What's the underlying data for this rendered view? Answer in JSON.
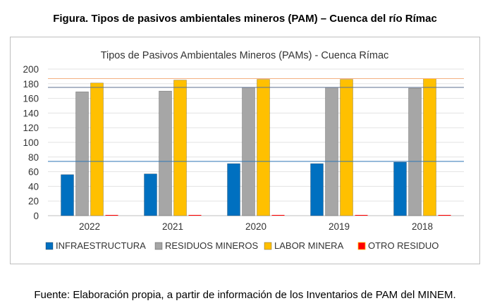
{
  "figure_caption": "Figura. Tipos de pasivos ambientales mineros (PAM) – Cuenca del río Rímac",
  "source_note": "Fuente: Elaboración propia, a partir de información de los Inventarios de PAM del MINEM.",
  "chart_data": {
    "type": "bar",
    "title": "Tipos de Pasivos Ambientales Mineros (PAMs) - Cuenca Rímac",
    "xlabel": "",
    "ylabel": "",
    "categories": [
      "2022",
      "2021",
      "2020",
      "2019",
      "2018"
    ],
    "ylim": [
      0,
      200
    ],
    "yticks": [
      0,
      20,
      40,
      60,
      80,
      100,
      120,
      140,
      160,
      180,
      200
    ],
    "grid": true,
    "legend_position": "bottom",
    "series": [
      {
        "name": "INFRAESTRUCTURA",
        "color": "#0070c0",
        "values": [
          56,
          57,
          71,
          71,
          73
        ]
      },
      {
        "name": "RESIDUOS MINEROS",
        "color": "#a6a6a6",
        "values": [
          169,
          170,
          175,
          175,
          174
        ]
      },
      {
        "name": "LABOR MINERA",
        "color": "#ffc000",
        "values": [
          181,
          185,
          186,
          186,
          187
        ]
      },
      {
        "name": "OTRO RESIDUO",
        "color": "#ff0000",
        "values": [
          1,
          1,
          1,
          1,
          1
        ]
      }
    ],
    "reference_lines": [
      {
        "value": 74,
        "color": "#2e75b6"
      },
      {
        "value": 175,
        "color": "#5b6f8f"
      },
      {
        "value": 187,
        "color": "#f4b183"
      }
    ]
  }
}
